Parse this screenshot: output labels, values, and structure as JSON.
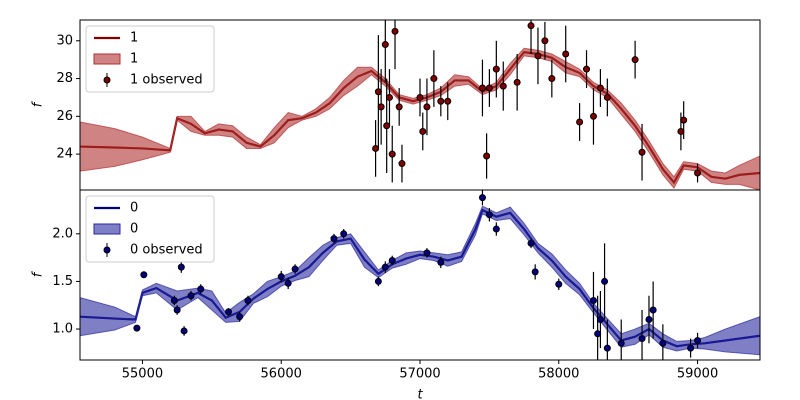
{
  "chart_data": [
    {
      "type": "line",
      "ylabel": "f",
      "xlim": [
        54550,
        59450
      ],
      "ylim": [
        22.1,
        31.1
      ],
      "yticks": [
        24,
        26,
        28,
        30
      ],
      "legend": "upper left",
      "x": [
        54550,
        54800,
        55000,
        55200,
        55250,
        55350,
        55450,
        55550,
        55650,
        55750,
        55850,
        55950,
        56050,
        56150,
        56250,
        56350,
        56450,
        56550,
        56650,
        56750,
        56850,
        56950,
        57050,
        57150,
        57250,
        57350,
        57450,
        57550,
        57650,
        57750,
        57850,
        57950,
        58050,
        58150,
        58250,
        58350,
        58450,
        58550,
        58650,
        58750,
        58830,
        58900,
        59000,
        59100,
        59200,
        59300,
        59450
      ],
      "series": [
        {
          "name": "1",
          "color": "#800000",
          "values": [
            24.4,
            24.35,
            24.3,
            24.2,
            25.9,
            25.6,
            25.1,
            25.3,
            25.2,
            24.6,
            24.4,
            25.0,
            25.8,
            25.9,
            26.2,
            26.7,
            27.5,
            28.1,
            28.4,
            27.8,
            27.0,
            26.8,
            27.0,
            27.3,
            27.9,
            27.9,
            27.3,
            27.6,
            28.5,
            29.4,
            29.3,
            29.1,
            28.6,
            28.3,
            27.6,
            27.2,
            26.4,
            25.5,
            24.4,
            23.2,
            22.5,
            23.4,
            23.3,
            22.8,
            22.7,
            22.9,
            23.0
          ]
        },
        {
          "name": "1",
          "color": "#b03030",
          "lower": [
            23.1,
            23.35,
            23.7,
            24.1,
            25.8,
            25.2,
            25.0,
            25.0,
            24.9,
            24.3,
            24.3,
            24.6,
            25.4,
            25.8,
            26.0,
            26.4,
            27.1,
            27.6,
            28.2,
            27.6,
            26.85,
            26.65,
            26.85,
            27.1,
            27.6,
            27.7,
            27.15,
            27.4,
            28.2,
            29.2,
            29.1,
            28.9,
            28.3,
            28.1,
            27.4,
            27.0,
            26.1,
            25.2,
            24.1,
            22.9,
            22.2,
            23.2,
            23.1,
            22.5,
            22.4,
            22.4,
            22.1
          ],
          "upper": [
            25.7,
            25.35,
            24.9,
            24.3,
            26.0,
            26.0,
            25.2,
            25.6,
            25.5,
            24.9,
            24.5,
            25.4,
            26.2,
            26.0,
            26.4,
            27.0,
            27.9,
            28.6,
            28.6,
            28.0,
            27.15,
            26.95,
            27.15,
            27.5,
            28.2,
            28.1,
            27.45,
            27.8,
            28.8,
            29.6,
            29.5,
            29.3,
            28.9,
            28.5,
            27.8,
            27.4,
            26.7,
            25.8,
            24.7,
            23.5,
            22.8,
            23.6,
            23.5,
            23.1,
            23.0,
            23.4,
            23.9
          ]
        },
        {
          "name": "1 observed",
          "color": "#800000",
          "x": [
            56680,
            56700,
            56720,
            56750,
            56760,
            56780,
            56800,
            56820,
            56850,
            56870,
            57000,
            57020,
            57050,
            57100,
            57150,
            57200,
            57450,
            57480,
            57500,
            57550,
            57600,
            57700,
            57800,
            57850,
            57900,
            57950,
            58050,
            58150,
            58200,
            58250,
            58300,
            58350,
            58550,
            58600,
            58880,
            58900,
            59000
          ],
          "values": [
            24.3,
            27.3,
            26.5,
            29.8,
            25.5,
            27.0,
            24.0,
            30.5,
            26.5,
            23.5,
            27.0,
            25.2,
            26.5,
            28.0,
            26.8,
            26.8,
            27.5,
            23.9,
            27.5,
            28.5,
            27.6,
            27.8,
            30.8,
            29.2,
            30.0,
            28.0,
            29.3,
            25.7,
            28.5,
            26.0,
            27.5,
            27.0,
            29.0,
            24.1,
            25.2,
            25.8,
            23.0
          ],
          "errors": [
            1.5,
            3,
            2,
            2,
            2.5,
            1.5,
            1.5,
            2,
            1,
            1,
            1,
            1,
            1.5,
            1.5,
            0.8,
            1,
            1.5,
            1.2,
            1,
            1.5,
            1.3,
            1.5,
            1.5,
            1.5,
            1,
            1,
            1.5,
            1,
            1,
            1.5,
            1,
            1,
            1,
            1.5,
            1,
            1,
            0.5
          ]
        }
      ]
    },
    {
      "type": "line",
      "ylabel": "f",
      "xlabel": "t",
      "xlim": [
        54550,
        59450
      ],
      "ylim": [
        0.675,
        2.46
      ],
      "xticks": [
        55000,
        56000,
        57000,
        58000,
        59000
      ],
      "yticks": [
        {
          "value": 1,
          "label": "1.0"
        },
        1.5,
        {
          "value": 2,
          "label": "2.0"
        }
      ],
      "legend": "upper left",
      "x": [
        54550,
        54800,
        54950,
        55000,
        55100,
        55250,
        55400,
        55500,
        55600,
        55700,
        55800,
        55900,
        56000,
        56100,
        56200,
        56300,
        56400,
        56500,
        56600,
        56700,
        56800,
        56900,
        57000,
        57100,
        57200,
        57300,
        57400,
        57450,
        57550,
        57650,
        57750,
        57850,
        57950,
        58050,
        58150,
        58250,
        58350,
        58450,
        58550,
        58650,
        58750,
        58850,
        58950,
        59050,
        59200,
        59450
      ],
      "series": [
        {
          "name": "0",
          "color": "#000080",
          "values": [
            1.13,
            1.11,
            1.1,
            1.38,
            1.43,
            1.3,
            1.38,
            1.3,
            1.12,
            1.18,
            1.32,
            1.42,
            1.5,
            1.56,
            1.65,
            1.8,
            1.92,
            1.95,
            1.73,
            1.58,
            1.68,
            1.74,
            1.78,
            1.76,
            1.72,
            1.76,
            2.05,
            2.25,
            2.18,
            2.22,
            2.05,
            1.85,
            1.72,
            1.55,
            1.42,
            1.22,
            1.05,
            0.88,
            0.92,
            1.0,
            0.88,
            0.82,
            0.84,
            0.85,
            0.88,
            0.93
          ]
        },
        {
          "name": "0",
          "color": "#2a2aa0",
          "lower": [
            0.93,
            0.99,
            1.07,
            1.35,
            1.38,
            1.2,
            1.33,
            1.2,
            1.07,
            1.08,
            1.27,
            1.34,
            1.45,
            1.51,
            1.55,
            1.72,
            1.88,
            1.9,
            1.65,
            1.54,
            1.64,
            1.68,
            1.74,
            1.72,
            1.66,
            1.71,
            1.99,
            2.21,
            2.14,
            2.16,
            1.99,
            1.8,
            1.65,
            1.48,
            1.36,
            1.17,
            0.99,
            0.81,
            0.84,
            0.94,
            0.81,
            0.77,
            0.8,
            0.79,
            0.76,
            0.73
          ],
          "upper": [
            1.33,
            1.23,
            1.13,
            1.41,
            1.48,
            1.4,
            1.43,
            1.4,
            1.17,
            1.28,
            1.37,
            1.5,
            1.55,
            1.61,
            1.75,
            1.88,
            1.96,
            2.0,
            1.81,
            1.62,
            1.72,
            1.8,
            1.82,
            1.8,
            1.78,
            1.81,
            2.11,
            2.29,
            2.22,
            2.28,
            2.11,
            1.9,
            1.79,
            1.62,
            1.48,
            1.27,
            1.11,
            0.95,
            1.0,
            1.06,
            0.95,
            0.87,
            0.88,
            0.91,
            1.0,
            1.13
          ]
        },
        {
          "name": "0 observed",
          "color": "#000080",
          "x": [
            54960,
            55010,
            55230,
            55250,
            55280,
            55300,
            55350,
            55420,
            55620,
            55700,
            55760,
            56000,
            56050,
            56100,
            56380,
            56450,
            56700,
            56750,
            56800,
            57050,
            57150,
            57450,
            57500,
            57550,
            57800,
            57830,
            58000,
            58250,
            58280,
            58300,
            58330,
            58350,
            58450,
            58600,
            58650,
            58680,
            58750,
            58950,
            59000
          ],
          "values": [
            1.01,
            1.57,
            1.3,
            1.2,
            1.65,
            0.98,
            1.35,
            1.42,
            1.18,
            1.13,
            1.3,
            1.55,
            1.48,
            1.63,
            1.95,
            2.0,
            1.5,
            1.65,
            1.72,
            1.8,
            1.7,
            2.38,
            2.2,
            2.05,
            1.9,
            1.6,
            1.47,
            1.3,
            0.95,
            1.1,
            1.5,
            0.8,
            0.85,
            0.9,
            1.1,
            1.2,
            0.85,
            0.8,
            0.88
          ],
          "errors": [
            0.03,
            0.03,
            0.05,
            0.05,
            0.06,
            0.05,
            0.05,
            0.05,
            0.04,
            0.05,
            0.05,
            0.06,
            0.06,
            0.05,
            0.05,
            0.05,
            0.05,
            0.06,
            0.05,
            0.05,
            0.06,
            0.08,
            0.07,
            0.07,
            0.05,
            0.08,
            0.06,
            0.3,
            0.4,
            0.3,
            0.4,
            0.3,
            0.25,
            0.3,
            0.25,
            0.3,
            0.2,
            0.1,
            0.08
          ]
        }
      ]
    }
  ]
}
